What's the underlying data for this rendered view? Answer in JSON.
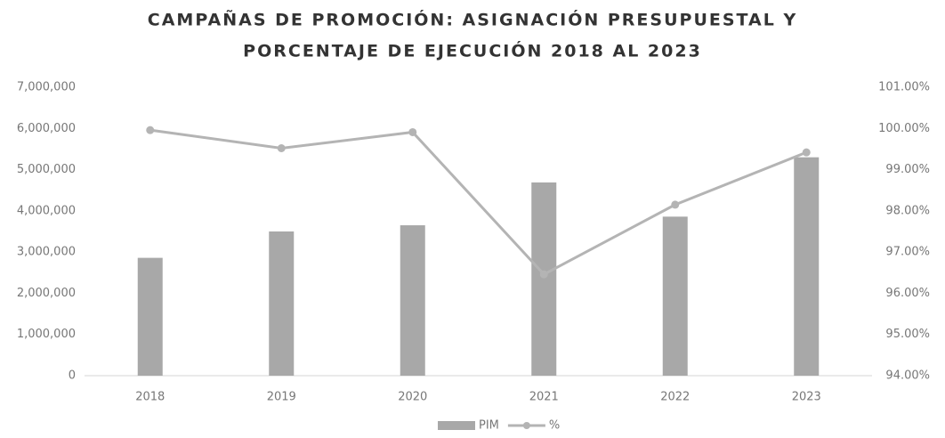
{
  "chart_data": {
    "type": "bar-line",
    "title": [
      "CAMPAÑAS DE PROMOCIÓN: ASIGNACIÓN PRESUPUESTAL Y",
      "PORCENTAJE DE EJECUCIÓN 2018 AL 2023"
    ],
    "categories": [
      "2018",
      "2019",
      "2020",
      "2021",
      "2022",
      "2023"
    ],
    "series": [
      {
        "name": "PIM",
        "type": "bar",
        "color": "#a8a8a8",
        "values": [
          2860000,
          3500000,
          3650000,
          4690000,
          3860000,
          5300000
        ]
      },
      {
        "name": "%",
        "type": "line",
        "axis": "y2",
        "color": "#b4b4b4",
        "values": [
          99.96,
          99.52,
          99.91,
          96.46,
          98.15,
          99.42
        ]
      }
    ],
    "ylim": [
      0,
      7000000
    ],
    "yticks": [
      0,
      {
        "value": 1000000,
        "label": "1,000,000"
      },
      {
        "value": 2000000,
        "label": "2,000,000"
      },
      {
        "value": 3000000,
        "label": "3,000,000"
      },
      {
        "value": 4000000,
        "label": "4,000,000"
      },
      {
        "value": 5000000,
        "label": "5,000,000"
      },
      {
        "value": 6000000,
        "label": "6,000,000"
      },
      {
        "value": 7000000,
        "label": "7,000,000"
      }
    ],
    "y2lim": [
      94,
      101
    ],
    "y2ticks": [
      {
        "value": 94,
        "label": "94.00%"
      },
      {
        "value": 95,
        "label": "95.00%"
      },
      {
        "value": 96,
        "label": "96.00%"
      },
      {
        "value": 97,
        "label": "97.00%"
      },
      {
        "value": 98,
        "label": "98.00%"
      },
      {
        "value": 99,
        "label": "99.00%"
      },
      {
        "value": 100,
        "label": "100.00%"
      },
      {
        "value": 101,
        "label": "101.00%"
      }
    ],
    "legend": "bottom"
  }
}
